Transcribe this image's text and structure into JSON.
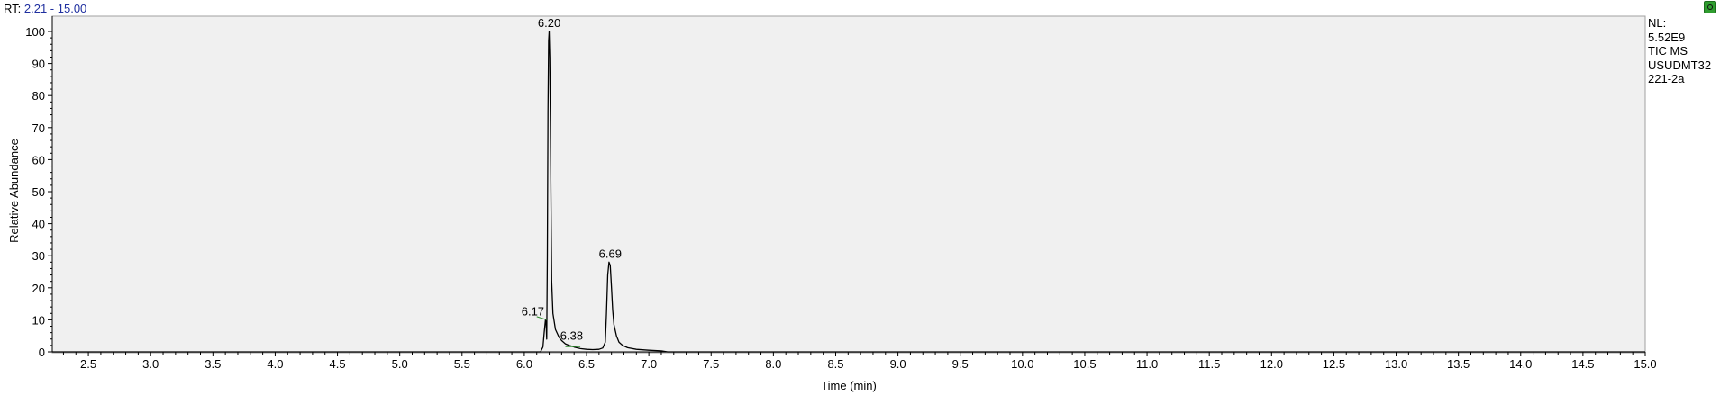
{
  "header": {
    "rt_prefix": "RT:",
    "rt_range": "2.21 - 15.00"
  },
  "side_panel": {
    "lines": [
      "NL:",
      "5.52E9",
      "TIC  MS",
      "USUDMT32",
      "221-2a"
    ]
  },
  "icons": {
    "corner": "refresh-icon"
  },
  "colors": {
    "plot_bg": "#f0f0f0",
    "trace": "#000000",
    "baseline_mark": "#2e8b2e",
    "rt_range": "#1f2f9f"
  },
  "chart_data": {
    "type": "line",
    "title": "",
    "xlabel": "Time (min)",
    "ylabel": "Relative Abundance",
    "xlim": [
      2.21,
      15.0
    ],
    "ylim": [
      0,
      100
    ],
    "grid": false,
    "x_ticks": [
      "2.5",
      "3.0",
      "3.5",
      "4.0",
      "4.5",
      "5.0",
      "5.5",
      "6.0",
      "6.5",
      "7.0",
      "7.5",
      "8.0",
      "8.5",
      "9.0",
      "9.5",
      "10.0",
      "10.5",
      "11.0",
      "11.5",
      "12.0",
      "12.5",
      "13.0",
      "13.5",
      "14.0",
      "14.5",
      "15.0"
    ],
    "y_ticks": [
      "0",
      "10",
      "20",
      "30",
      "40",
      "50",
      "60",
      "70",
      "80",
      "90",
      "100"
    ],
    "series": [
      {
        "x": [
          2.21,
          6.13,
          6.15,
          6.16,
          6.17,
          6.175,
          6.18,
          6.185,
          6.19,
          6.195,
          6.2,
          6.205,
          6.21,
          6.215,
          6.22,
          6.23,
          6.25,
          6.28,
          6.3,
          6.33,
          6.36,
          6.38,
          6.4,
          6.45,
          6.5,
          6.55,
          6.6,
          6.63,
          6.65,
          6.66,
          6.67,
          6.68,
          6.69,
          6.7,
          6.71,
          6.72,
          6.74,
          6.76,
          6.79,
          6.83,
          6.9,
          7.0,
          7.1,
          7.15,
          15.0
        ],
        "y": [
          0,
          0,
          1.5,
          6,
          10,
          9,
          4,
          30,
          75,
          97,
          100,
          92,
          70,
          45,
          22,
          12,
          7,
          4.5,
          3.5,
          2.5,
          2.0,
          1.8,
          1.5,
          1.0,
          0.8,
          0.7,
          0.8,
          1.2,
          3,
          12,
          24,
          28,
          27,
          20,
          13,
          8.5,
          5,
          3,
          2,
          1.3,
          0.8,
          0.5,
          0.3,
          0,
          0
        ]
      }
    ],
    "peak_labels": [
      {
        "text": "6.20",
        "x": 6.2,
        "y": 100
      },
      {
        "text": "6.17",
        "x": 6.17,
        "y": 10
      },
      {
        "text": "6.38",
        "x": 6.38,
        "y": 1.8
      },
      {
        "text": "6.69",
        "x": 6.69,
        "y": 28
      }
    ]
  }
}
